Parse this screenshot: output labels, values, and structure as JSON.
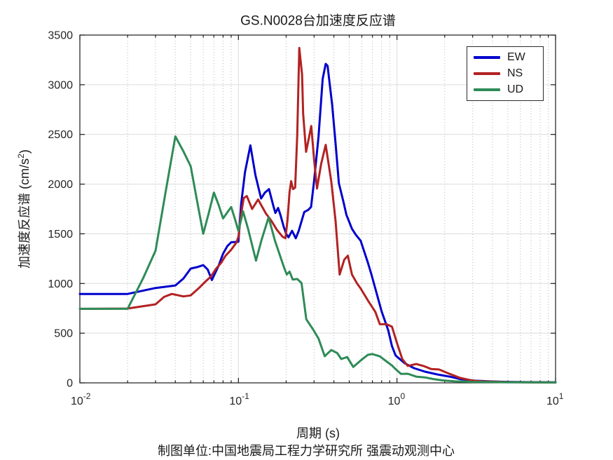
{
  "figure": {
    "title": "GS.N0028台加速度反应谱",
    "footer": "制图单位:中国地震局工程力学研究所 强震动观测中心"
  },
  "axis_colors": {
    "spine": "#1a1a1a",
    "tick_label": "#262626",
    "grid_major": "#dcdcdc",
    "grid_minor": "#b8b8b8"
  },
  "ylabel_parts": {
    "main": "加速度反应谱 (cm/s",
    "sup": "2",
    "close": ")"
  },
  "chart_data": {
    "type": "line",
    "title": "GS.N0028台加速度反应谱",
    "xlabel": "周期 (s)",
    "ylabel": "加速度反应谱 (cm/s²)",
    "x_scale": "log",
    "xlim": [
      0.01,
      10
    ],
    "ylim": [
      0,
      3500
    ],
    "y_ticks": [
      0,
      500,
      1000,
      1500,
      2000,
      2500,
      3000,
      3500
    ],
    "x_tick_exponents": [
      -2,
      -1,
      0,
      1
    ],
    "x_tick_base": "10",
    "grid": {
      "horizontal_major": true,
      "vertical_major": true,
      "vertical_minor_dotted": true
    },
    "legend": {
      "position": "top-right",
      "entries": [
        "EW",
        "NS",
        "UD"
      ]
    },
    "series": [
      {
        "name": "EW",
        "color": "#0000CD",
        "points": [
          [
            0.01,
            895
          ],
          [
            0.02,
            895
          ],
          [
            0.03,
            955
          ],
          [
            0.04,
            980
          ],
          [
            0.045,
            1050
          ],
          [
            0.05,
            1150
          ],
          [
            0.055,
            1165
          ],
          [
            0.06,
            1185
          ],
          [
            0.064,
            1140
          ],
          [
            0.068,
            1035
          ],
          [
            0.075,
            1180
          ],
          [
            0.08,
            1300
          ],
          [
            0.085,
            1375
          ],
          [
            0.09,
            1415
          ],
          [
            0.1,
            1420
          ],
          [
            0.104,
            1800
          ],
          [
            0.11,
            2120
          ],
          [
            0.119,
            2390
          ],
          [
            0.128,
            2090
          ],
          [
            0.139,
            1855
          ],
          [
            0.147,
            1915
          ],
          [
            0.156,
            1950
          ],
          [
            0.166,
            1780
          ],
          [
            0.171,
            1710
          ],
          [
            0.178,
            1760
          ],
          [
            0.184,
            1690
          ],
          [
            0.193,
            1570
          ],
          [
            0.2,
            1500
          ],
          [
            0.207,
            1465
          ],
          [
            0.218,
            1530
          ],
          [
            0.23,
            1455
          ],
          [
            0.24,
            1530
          ],
          [
            0.26,
            1720
          ],
          [
            0.275,
            1740
          ],
          [
            0.287,
            1770
          ],
          [
            0.3,
            2030
          ],
          [
            0.32,
            2480
          ],
          [
            0.34,
            3060
          ],
          [
            0.355,
            3210
          ],
          [
            0.365,
            3190
          ],
          [
            0.39,
            2800
          ],
          [
            0.41,
            2410
          ],
          [
            0.43,
            2010
          ],
          [
            0.46,
            1820
          ],
          [
            0.48,
            1690
          ],
          [
            0.5,
            1620
          ],
          [
            0.52,
            1550
          ],
          [
            0.55,
            1490
          ],
          [
            0.59,
            1430
          ],
          [
            0.62,
            1325
          ],
          [
            0.655,
            1210
          ],
          [
            0.69,
            1090
          ],
          [
            0.73,
            950
          ],
          [
            0.8,
            720
          ],
          [
            0.88,
            530
          ],
          [
            0.93,
            370
          ],
          [
            0.98,
            275
          ],
          [
            1.12,
            197
          ],
          [
            1.28,
            148
          ],
          [
            1.5,
            113
          ],
          [
            1.8,
            85
          ],
          [
            2.15,
            63
          ],
          [
            2.5,
            38
          ],
          [
            3.1,
            22
          ],
          [
            4,
            14
          ],
          [
            5,
            10
          ],
          [
            7,
            7
          ],
          [
            10,
            5
          ]
        ]
      },
      {
        "name": "NS",
        "color": "#B22222",
        "points": [
          [
            0.01,
            745
          ],
          [
            0.02,
            748
          ],
          [
            0.03,
            790
          ],
          [
            0.034,
            865
          ],
          [
            0.038,
            895
          ],
          [
            0.045,
            870
          ],
          [
            0.05,
            880
          ],
          [
            0.056,
            950
          ],
          [
            0.062,
            1020
          ],
          [
            0.067,
            1070
          ],
          [
            0.072,
            1145
          ],
          [
            0.078,
            1210
          ],
          [
            0.083,
            1280
          ],
          [
            0.09,
            1340
          ],
          [
            0.097,
            1410
          ],
          [
            0.1,
            1470
          ],
          [
            0.104,
            1700
          ],
          [
            0.108,
            1860
          ],
          [
            0.113,
            1880
          ],
          [
            0.122,
            1750
          ],
          [
            0.133,
            1845
          ],
          [
            0.149,
            1705
          ],
          [
            0.16,
            1640
          ],
          [
            0.175,
            1540
          ],
          [
            0.19,
            1470
          ],
          [
            0.198,
            1455
          ],
          [
            0.204,
            1640
          ],
          [
            0.21,
            1920
          ],
          [
            0.215,
            2030
          ],
          [
            0.221,
            1950
          ],
          [
            0.228,
            1965
          ],
          [
            0.235,
            2500
          ],
          [
            0.242,
            3370
          ],
          [
            0.252,
            3100
          ],
          [
            0.256,
            2710
          ],
          [
            0.267,
            2325
          ],
          [
            0.277,
            2450
          ],
          [
            0.288,
            2585
          ],
          [
            0.3,
            2250
          ],
          [
            0.313,
            1955
          ],
          [
            0.332,
            2200
          ],
          [
            0.355,
            2395
          ],
          [
            0.385,
            2030
          ],
          [
            0.41,
            1630
          ],
          [
            0.435,
            1090
          ],
          [
            0.465,
            1240
          ],
          [
            0.49,
            1280
          ],
          [
            0.52,
            1090
          ],
          [
            0.56,
            1000
          ],
          [
            0.59,
            950
          ],
          [
            0.655,
            830
          ],
          [
            0.73,
            715
          ],
          [
            0.78,
            590
          ],
          [
            0.86,
            590
          ],
          [
            0.93,
            565
          ],
          [
            1.0,
            400
          ],
          [
            1.08,
            240
          ],
          [
            1.17,
            170
          ],
          [
            1.32,
            190
          ],
          [
            1.47,
            170
          ],
          [
            1.64,
            140
          ],
          [
            1.84,
            135
          ],
          [
            2.15,
            90
          ],
          [
            2.5,
            50
          ],
          [
            3.0,
            22
          ],
          [
            3.5,
            15
          ],
          [
            4,
            12
          ],
          [
            5,
            8
          ],
          [
            7,
            5
          ],
          [
            10,
            4
          ]
        ]
      },
      {
        "name": "UD",
        "color": "#2E8B57",
        "points": [
          [
            0.01,
            745
          ],
          [
            0.02,
            745
          ],
          [
            0.025,
            1050
          ],
          [
            0.03,
            1330
          ],
          [
            0.035,
            1950
          ],
          [
            0.04,
            2480
          ],
          [
            0.045,
            2330
          ],
          [
            0.05,
            2180
          ],
          [
            0.055,
            1820
          ],
          [
            0.06,
            1500
          ],
          [
            0.065,
            1710
          ],
          [
            0.07,
            1915
          ],
          [
            0.075,
            1790
          ],
          [
            0.08,
            1655
          ],
          [
            0.085,
            1715
          ],
          [
            0.09,
            1770
          ],
          [
            0.095,
            1650
          ],
          [
            0.1,
            1530
          ],
          [
            0.107,
            1725
          ],
          [
            0.115,
            1550
          ],
          [
            0.129,
            1230
          ],
          [
            0.14,
            1440
          ],
          [
            0.155,
            1665
          ],
          [
            0.17,
            1430
          ],
          [
            0.183,
            1280
          ],
          [
            0.195,
            1150
          ],
          [
            0.202,
            1090
          ],
          [
            0.21,
            1120
          ],
          [
            0.22,
            1040
          ],
          [
            0.235,
            1045
          ],
          [
            0.25,
            1005
          ],
          [
            0.268,
            640
          ],
          [
            0.295,
            540
          ],
          [
            0.32,
            445
          ],
          [
            0.35,
            268
          ],
          [
            0.385,
            330
          ],
          [
            0.42,
            300
          ],
          [
            0.445,
            240
          ],
          [
            0.485,
            260
          ],
          [
            0.53,
            160
          ],
          [
            0.59,
            225
          ],
          [
            0.655,
            282
          ],
          [
            0.7,
            290
          ],
          [
            0.78,
            267
          ],
          [
            0.86,
            215
          ],
          [
            0.93,
            175
          ],
          [
            0.97,
            145
          ],
          [
            1.06,
            90
          ],
          [
            1.17,
            92
          ],
          [
            1.32,
            63
          ],
          [
            1.5,
            55
          ],
          [
            1.7,
            38
          ],
          [
            1.95,
            25
          ],
          [
            2.3,
            16
          ],
          [
            3,
            10
          ],
          [
            4,
            8
          ],
          [
            5,
            6
          ],
          [
            7,
            5
          ],
          [
            10,
            4
          ]
        ]
      }
    ]
  }
}
